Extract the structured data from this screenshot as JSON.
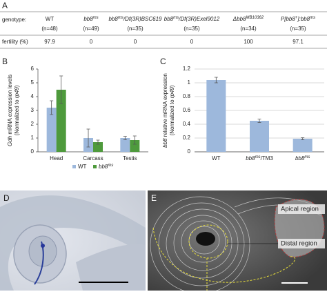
{
  "panel_labels": {
    "a": "A",
    "b": "B",
    "c": "C",
    "d": "D",
    "e": "E"
  },
  "table": {
    "row_labels": [
      "genotype:",
      "fertility (%)"
    ],
    "headers": [
      [
        {
          "t": "WT"
        }
      ],
      [
        {
          "t": "bb8",
          "i": true
        },
        {
          "t": "ms",
          "i": true,
          "sup": true
        }
      ],
      [
        {
          "t": "bb8",
          "i": true
        },
        {
          "t": "ms",
          "i": true,
          "sup": true
        },
        {
          "t": "/Df(3R)BSC619",
          "i": true
        }
      ],
      [
        {
          "t": "bb8",
          "i": true
        },
        {
          "t": "ms",
          "i": true,
          "sup": true
        },
        {
          "t": "/Df(3R)Exel9012",
          "i": true
        }
      ],
      [
        {
          "t": "Δbb8",
          "i": true
        },
        {
          "t": "MB10362",
          "i": true,
          "sup": true
        }
      ],
      [
        {
          "t": "P[bb8",
          "i": true
        },
        {
          "t": "+",
          "i": true,
          "sup": true
        },
        {
          "t": "]:bb8",
          "i": true
        },
        {
          "t": "ms",
          "i": true,
          "sup": true
        }
      ]
    ],
    "counts": [
      "(n=48)",
      "(n=49)",
      "(n=35)",
      "(n=35)",
      "(n=34)",
      "(n=35)"
    ],
    "fertility": [
      97.9,
      0,
      0,
      0,
      100,
      97.1
    ]
  },
  "chart_data": [
    {
      "type": "bar",
      "ylabel": [
        [
          {
            "t": "Gdh",
            "i": true
          },
          {
            "t": " mRNA expression levels"
          }
        ],
        [
          {
            "t": "(Normalized to "
          },
          {
            "t": "rp49",
            "i": true
          },
          {
            "t": ")"
          }
        ]
      ],
      "categories": [
        [
          {
            "t": "Head"
          }
        ],
        [
          {
            "t": "Carcass"
          }
        ],
        [
          {
            "t": "Testis"
          }
        ]
      ],
      "series": [
        {
          "name": [
            {
              "t": "WT"
            }
          ],
          "color": "#9db8dc",
          "values": [
            3.2,
            1.0,
            1.0
          ],
          "errors": [
            0.5,
            0.65,
            0.12
          ]
        },
        {
          "name": [
            {
              "t": "bb8",
              "i": true
            },
            {
              "t": "ms",
              "i": true,
              "sup": true
            }
          ],
          "color": "#4e9a3c",
          "values": [
            4.5,
            0.7,
            0.85
          ],
          "errors": [
            1.0,
            0.15,
            0.3
          ]
        }
      ],
      "ylim": [
        0,
        6
      ],
      "yticks": [
        0,
        1,
        2,
        3,
        4,
        5,
        6
      ],
      "grid": false,
      "legend": "bottom"
    },
    {
      "type": "bar",
      "ylabel": [
        [
          {
            "t": "bb8",
            "i": true
          },
          {
            "t": " relative mRNA expression"
          }
        ],
        [
          {
            "t": "(Normalized to "
          },
          {
            "t": "rp49",
            "i": true
          },
          {
            "t": ")"
          }
        ]
      ],
      "categories": [
        [
          {
            "t": "WT"
          }
        ],
        [
          {
            "t": "bb8",
            "i": true
          },
          {
            "t": "ms",
            "i": true,
            "sup": true
          },
          {
            "t": "/TM3"
          }
        ],
        [
          {
            "t": "bb8",
            "i": true
          },
          {
            "t": "ms",
            "i": true,
            "sup": true
          }
        ]
      ],
      "series": [
        {
          "color": "#9db8dc",
          "values": [
            1.04,
            0.45,
            0.19
          ],
          "errors": [
            0.04,
            0.025,
            0.015
          ]
        }
      ],
      "ylim": [
        0,
        1.2
      ],
      "yticks": [
        0,
        0.2,
        0.4,
        0.6,
        0.8,
        1,
        1.2
      ],
      "grid": true
    }
  ],
  "images": {
    "labels": [
      "Apical region",
      "Distal region"
    ]
  }
}
